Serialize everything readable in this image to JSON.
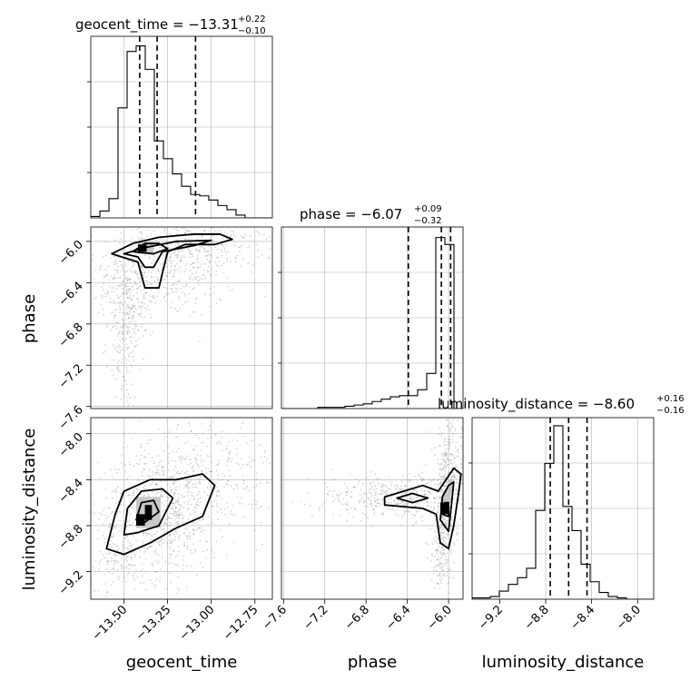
{
  "chart_data": {
    "type": "corner",
    "grid": true,
    "colors": {
      "line": "#000000",
      "grid": "#b0b0b0",
      "scatter": "#888888",
      "density_dark": "#000000",
      "density_mid": "#c8c8c8"
    },
    "parameters": [
      {
        "name": "geocent_time",
        "axis_range": [
          -13.69,
          -12.65
        ],
        "ticks": [
          -13.5,
          -13.25,
          -13.0,
          -12.75
        ],
        "tick_labels": [
          "−13.50",
          "−13.25",
          "−13.00",
          "−12.75"
        ]
      },
      {
        "name": "phase",
        "axis_range": [
          -7.62,
          -5.86
        ],
        "ticks": [
          -7.6,
          -7.2,
          -6.8,
          -6.4,
          -6.0
        ],
        "tick_labels": [
          "−7.6",
          "−7.2",
          "−6.8",
          "−6.4",
          "−6.0"
        ]
      },
      {
        "name": "luminosity_distance",
        "axis_range": [
          -9.44,
          -7.86
        ],
        "ticks": [
          -9.2,
          -8.8,
          -8.4,
          -8.0
        ],
        "tick_labels": [
          "−9.2",
          "−8.8",
          "−8.4",
          "−8.0"
        ]
      }
    ],
    "titles": [
      {
        "main": "geocent_time = −13.31",
        "sup": "+0.22",
        "sub": "−0.10"
      },
      {
        "main": "phase = −6.07",
        "sup": "+0.09",
        "sub": "−0.32"
      },
      {
        "main": "luminosity_distance = −8.60",
        "sup": "+0.16",
        "sub": "−0.16"
      }
    ],
    "histograms": [
      {
        "param": "geocent_time",
        "bin_edges": [
          -13.69,
          -13.638,
          -13.586,
          -13.534,
          -13.482,
          -13.43,
          -13.378,
          -13.326,
          -13.274,
          -13.222,
          -13.17,
          -13.118,
          -13.066,
          -13.014,
          -12.962,
          -12.91,
          -12.858,
          -12.806,
          -12.754,
          -12.702,
          -12.65
        ],
        "counts": [
          1,
          5,
          14,
          80,
          121,
          125,
          108,
          56,
          43,
          32,
          23,
          17,
          16,
          13,
          9,
          6,
          2,
          0,
          0,
          0
        ],
        "ymax": 132,
        "quantiles": [
          -13.41,
          -13.31,
          -13.09
        ]
      },
      {
        "param": "phase",
        "bin_edges": [
          -7.62,
          -7.532,
          -7.444,
          -7.356,
          -7.268,
          -7.18,
          -7.092,
          -7.004,
          -6.916,
          -6.828,
          -6.74,
          -6.652,
          -6.564,
          -6.476,
          -6.388,
          -6.3,
          -6.212,
          -6.124,
          -6.036,
          -5.948,
          -5.86
        ],
        "counts": [
          0,
          0,
          0,
          0,
          1,
          1,
          1,
          2,
          3,
          4,
          6,
          8,
          10,
          11,
          11,
          16,
          30,
          146,
          140,
          0
        ],
        "ymax": 155,
        "quantiles": [
          -6.39,
          -6.07,
          -5.98
        ]
      },
      {
        "param": "luminosity_distance",
        "bin_edges": [
          -9.44,
          -9.361,
          -9.282,
          -9.203,
          -9.124,
          -9.045,
          -8.966,
          -8.887,
          -8.808,
          -8.729,
          -8.65,
          -8.571,
          -8.492,
          -8.413,
          -8.334,
          -8.255,
          -8.176,
          -8.097,
          -8.018,
          -7.939,
          -7.86
        ],
        "counts": [
          1,
          1,
          2,
          6,
          11,
          16,
          23,
          66,
          101,
          129,
          69,
          51,
          26,
          13,
          5,
          2,
          1,
          0,
          0,
          0
        ],
        "ymax": 135,
        "quantiles": [
          -8.76,
          -8.6,
          -8.44
        ]
      }
    ],
    "pair_panels": [
      {
        "x": "geocent_time",
        "y": "phase",
        "scatter_clusters": [
          {
            "center": [
              -13.25,
              -6.25
            ],
            "spread": [
              0.2,
              0.25
            ],
            "n": 420
          },
          {
            "center": [
              -13.05,
              -6.05
            ],
            "spread": [
              0.22,
              0.1
            ],
            "n": 220
          },
          {
            "center": [
              -13.5,
              -6.9
            ],
            "spread": [
              0.05,
              0.38
            ],
            "n": 220
          },
          {
            "center": [
              -13.45,
              -6.5
            ],
            "spread": [
              0.08,
              0.2
            ],
            "n": 150
          }
        ],
        "density_blocks": [
          {
            "x": [
              -13.42,
              -13.37
            ],
            "y": [
              -6.1,
              -6.03
            ],
            "level": 1.0
          },
          {
            "x": [
              -13.42,
              -13.33
            ],
            "y": [
              -6.12,
              -6.0
            ],
            "level": 0.5
          }
        ],
        "contours": [
          [
            [
              -13.57,
              -6.12
            ],
            [
              -13.45,
              -6.02
            ],
            [
              -13.3,
              -5.96
            ],
            [
              -13.1,
              -5.93
            ],
            [
              -12.95,
              -5.93
            ],
            [
              -12.88,
              -5.98
            ],
            [
              -12.98,
              -6.03
            ],
            [
              -13.15,
              -6.03
            ],
            [
              -13.25,
              -6.1
            ],
            [
              -13.3,
              -6.45
            ],
            [
              -13.38,
              -6.45
            ],
            [
              -13.42,
              -6.2
            ],
            [
              -13.57,
              -6.12
            ]
          ],
          [
            [
              -13.5,
              -6.12
            ],
            [
              -13.38,
              -6.06
            ],
            [
              -13.2,
              -6.0
            ],
            [
              -13.0,
              -5.99
            ],
            [
              -13.1,
              -6.04
            ],
            [
              -13.28,
              -6.1
            ],
            [
              -13.33,
              -6.25
            ],
            [
              -13.38,
              -6.25
            ],
            [
              -13.42,
              -6.15
            ],
            [
              -13.5,
              -6.12
            ]
          ],
          [
            [
              -13.45,
              -6.1
            ],
            [
              -13.38,
              -6.02
            ],
            [
              -13.3,
              -6.02
            ],
            [
              -13.25,
              -6.07
            ],
            [
              -13.33,
              -6.12
            ],
            [
              -13.45,
              -6.1
            ]
          ]
        ]
      },
      {
        "x": "geocent_time",
        "y": "luminosity_distance",
        "scatter_clusters": [
          {
            "center": [
              -13.3,
              -8.7
            ],
            "spread": [
              0.17,
              0.28
            ],
            "n": 720
          },
          {
            "center": [
              -13.0,
              -8.35
            ],
            "spread": [
              0.2,
              0.25
            ],
            "n": 320
          },
          {
            "center": [
              -13.55,
              -9.1
            ],
            "spread": [
              0.08,
              0.12
            ],
            "n": 100
          }
        ],
        "density_blocks": [
          {
            "x": [
              -13.43,
              -13.38
            ],
            "y": [
              -8.8,
              -8.7
            ],
            "level": 1.0
          },
          {
            "x": [
              -13.38,
              -13.34
            ],
            "y": [
              -8.75,
              -8.62
            ],
            "level": 0.95
          },
          {
            "x": [
              -13.43,
              -13.29
            ],
            "y": [
              -8.82,
              -8.55
            ],
            "level": 0.5
          }
        ],
        "contours": [
          [
            [
              -13.6,
              -9.0
            ],
            [
              -13.55,
              -8.7
            ],
            [
              -13.5,
              -8.5
            ],
            [
              -13.35,
              -8.4
            ],
            [
              -13.2,
              -8.4
            ],
            [
              -13.05,
              -8.35
            ],
            [
              -12.98,
              -8.45
            ],
            [
              -13.05,
              -8.72
            ],
            [
              -13.2,
              -8.82
            ],
            [
              -13.35,
              -8.95
            ],
            [
              -13.5,
              -9.05
            ],
            [
              -13.6,
              -9.0
            ]
          ],
          [
            [
              -13.5,
              -8.88
            ],
            [
              -13.48,
              -8.65
            ],
            [
              -13.4,
              -8.5
            ],
            [
              -13.28,
              -8.48
            ],
            [
              -13.22,
              -8.56
            ],
            [
              -13.3,
              -8.8
            ],
            [
              -13.42,
              -8.86
            ],
            [
              -13.5,
              -8.88
            ]
          ],
          [
            [
              -13.43,
              -8.75
            ],
            [
              -13.4,
              -8.6
            ],
            [
              -13.33,
              -8.58
            ],
            [
              -13.3,
              -8.68
            ],
            [
              -13.38,
              -8.77
            ],
            [
              -13.43,
              -8.75
            ]
          ]
        ]
      },
      {
        "x": "phase",
        "y": "luminosity_distance",
        "scatter_clusters": [
          {
            "center": [
              -6.5,
              -8.55
            ],
            "spread": [
              0.4,
              0.1
            ],
            "n": 420
          },
          {
            "center": [
              -6.03,
              -8.65
            ],
            "spread": [
              0.05,
              0.3
            ],
            "n": 320
          },
          {
            "center": [
              -5.95,
              -8.35
            ],
            "spread": [
              0.08,
              0.22
            ],
            "n": 180
          },
          {
            "center": [
              -6.1,
              -9.1
            ],
            "spread": [
              0.04,
              0.12
            ],
            "n": 70
          }
        ],
        "density_blocks": [
          {
            "x": [
              -6.08,
              -6.0
            ],
            "y": [
              -8.7,
              -8.6
            ],
            "level": 1.0
          },
          {
            "x": [
              -6.06,
              -5.98
            ],
            "y": [
              -8.6,
              -8.5
            ],
            "level": 0.6
          },
          {
            "x": [
              -6.0,
              -5.95
            ],
            "y": [
              -8.5,
              -8.4
            ],
            "level": 0.4
          }
        ],
        "contours": [
          [
            [
              -6.62,
              -8.55
            ],
            [
              -6.25,
              -8.45
            ],
            [
              -6.1,
              -8.5
            ],
            [
              -5.95,
              -8.3
            ],
            [
              -5.88,
              -8.35
            ],
            [
              -5.9,
              -8.5
            ],
            [
              -5.95,
              -8.8
            ],
            [
              -6.0,
              -9.0
            ],
            [
              -6.08,
              -8.95
            ],
            [
              -6.12,
              -8.7
            ],
            [
              -6.25,
              -8.65
            ],
            [
              -6.62,
              -8.62
            ],
            [
              -6.62,
              -8.55
            ]
          ],
          [
            [
              -6.5,
              -8.56
            ],
            [
              -6.35,
              -8.52
            ],
            [
              -6.2,
              -8.56
            ],
            [
              -6.35,
              -8.6
            ],
            [
              -6.5,
              -8.56
            ]
          ],
          [
            [
              -6.08,
              -8.75
            ],
            [
              -6.06,
              -8.55
            ],
            [
              -6.0,
              -8.45
            ],
            [
              -5.95,
              -8.42
            ],
            [
              -5.97,
              -8.6
            ],
            [
              -6.0,
              -8.85
            ],
            [
              -6.08,
              -8.75
            ]
          ],
          [
            [
              -6.06,
              -8.7
            ],
            [
              -6.04,
              -8.6
            ],
            [
              -6.0,
              -8.6
            ],
            [
              -6.0,
              -8.72
            ],
            [
              -6.06,
              -8.7
            ]
          ]
        ]
      }
    ]
  }
}
